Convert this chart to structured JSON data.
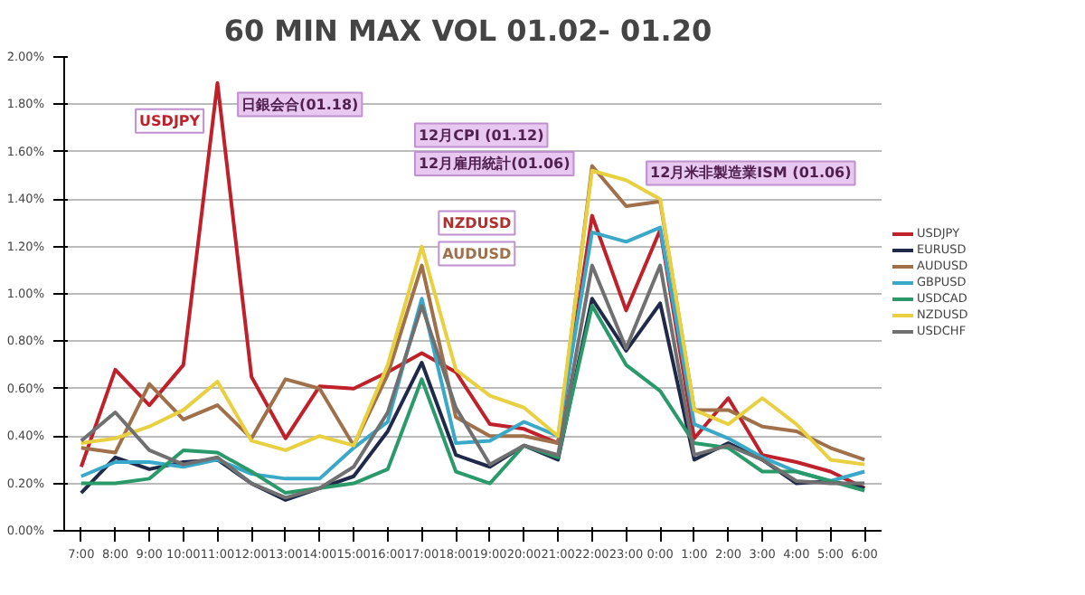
{
  "chart_data": {
    "type": "line",
    "title": "60 MIN MAX VOL  01.02- 01.20",
    "categories": [
      "7:00",
      "8:00",
      "9:00",
      "10:00",
      "11:00",
      "12:00",
      "13:00",
      "14:00",
      "15:00",
      "16:00",
      "17:00",
      "18:00",
      "19:00",
      "20:00",
      "21:00",
      "22:00",
      "23:00",
      "0:00",
      "1:00",
      "2:00",
      "3:00",
      "4:00",
      "5:00",
      "6:00"
    ],
    "series": [
      {
        "name": "USDJPY",
        "color": "#c0202a",
        "values": [
          0.27,
          0.68,
          0.53,
          0.7,
          1.89,
          0.65,
          0.39,
          0.61,
          0.6,
          0.67,
          0.75,
          0.67,
          0.45,
          0.43,
          0.37,
          1.33,
          0.93,
          1.27,
          0.39,
          0.56,
          0.32,
          0.29,
          0.25,
          0.18
        ]
      },
      {
        "name": "EURUSD",
        "color": "#1f2a4a",
        "values": [
          0.16,
          0.31,
          0.26,
          0.29,
          0.3,
          0.2,
          0.13,
          0.18,
          0.23,
          0.42,
          0.71,
          0.32,
          0.27,
          0.36,
          0.3,
          0.98,
          0.76,
          0.96,
          0.3,
          0.37,
          0.3,
          0.2,
          0.21,
          0.18
        ]
      },
      {
        "name": "AUDUSD",
        "color": "#a0704a",
        "values": [
          0.35,
          0.33,
          0.62,
          0.47,
          0.53,
          0.39,
          0.64,
          0.6,
          0.36,
          0.66,
          1.12,
          0.48,
          0.4,
          0.4,
          0.37,
          1.54,
          1.37,
          1.39,
          0.51,
          0.51,
          0.44,
          0.42,
          0.35,
          0.3
        ]
      },
      {
        "name": "GBPUSD",
        "color": "#3aa8c8",
        "values": [
          0.23,
          0.29,
          0.29,
          0.27,
          0.3,
          0.24,
          0.22,
          0.22,
          0.35,
          0.46,
          0.98,
          0.37,
          0.38,
          0.46,
          0.4,
          1.26,
          1.22,
          1.28,
          0.45,
          0.39,
          0.31,
          0.25,
          0.21,
          0.25
        ]
      },
      {
        "name": "USDCAD",
        "color": "#2a9a6a",
        "values": [
          0.2,
          0.2,
          0.22,
          0.34,
          0.33,
          0.25,
          0.16,
          0.18,
          0.2,
          0.26,
          0.64,
          0.25,
          0.2,
          0.36,
          0.31,
          0.95,
          0.7,
          0.59,
          0.37,
          0.35,
          0.25,
          0.25,
          0.21,
          0.17
        ]
      },
      {
        "name": "NZDUSD",
        "color": "#e8d040",
        "values": [
          0.37,
          0.39,
          0.44,
          0.51,
          0.63,
          0.38,
          0.34,
          0.4,
          0.36,
          0.7,
          1.2,
          0.68,
          0.57,
          0.52,
          0.4,
          1.52,
          1.48,
          1.4,
          0.51,
          0.45,
          0.56,
          0.45,
          0.3,
          0.28
        ]
      },
      {
        "name": "USDCHF",
        "color": "#707070",
        "values": [
          0.38,
          0.5,
          0.34,
          0.28,
          0.31,
          0.2,
          0.14,
          0.18,
          0.27,
          0.5,
          0.95,
          0.52,
          0.28,
          0.36,
          0.32,
          1.12,
          0.77,
          1.12,
          0.32,
          0.36,
          0.3,
          0.21,
          0.2,
          0.2
        ]
      }
    ],
    "ylim": [
      0,
      2.0
    ],
    "yticks": [
      {
        "value": 0,
        "label": "0.00%"
      },
      {
        "value": 0.2,
        "label": "0.20%"
      },
      {
        "value": 0.4,
        "label": "0.40%"
      },
      {
        "value": 0.6,
        "label": "0.60%"
      },
      {
        "value": 0.8,
        "label": "0.80%"
      },
      {
        "value": 1.0,
        "label": "1.00%"
      },
      {
        "value": 1.2,
        "label": "1.20%"
      },
      {
        "value": 1.4,
        "label": "1.40%"
      },
      {
        "value": 1.6,
        "label": "1.60%"
      },
      {
        "value": 1.8,
        "label": "1.80%"
      },
      {
        "value": 2.0,
        "label": "2.00%"
      }
    ],
    "annotations": [
      "USDJPY",
      "日銀会合(01.18)",
      "12月CPI (01.12)",
      "12月雇用統計(01.06)",
      "12月米非製造業ISM (01.06)",
      "NZDUSD",
      "AUDUSD"
    ],
    "grid": "y",
    "legend": "right",
    "marker": "none",
    "line_style": "solid"
  }
}
